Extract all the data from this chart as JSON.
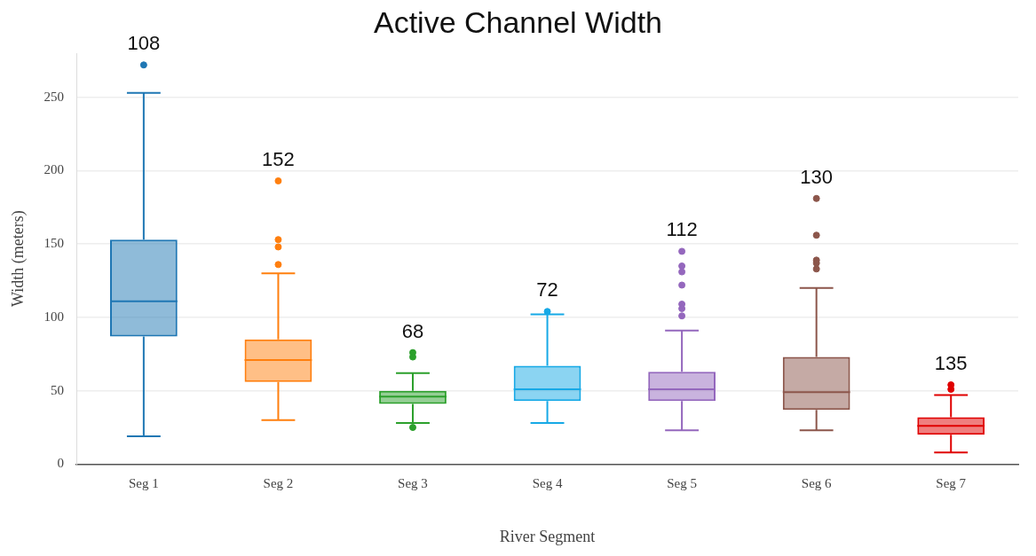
{
  "chart_data": {
    "type": "box",
    "title": "Active Channel Width",
    "xlabel": "River Segment",
    "ylabel": "Width (meters)",
    "categories": [
      "Seg 1",
      "Seg 2",
      "Seg 3",
      "Seg 4",
      "Seg 5",
      "Seg 6",
      "Seg 7"
    ],
    "colors": [
      "#1f77b4",
      "#ff7f0e",
      "#2ca02c",
      "#17a9e6",
      "#9467bd",
      "#8c564b",
      "#e00000"
    ],
    "boxes": [
      {
        "low": 19,
        "q1": 87,
        "median": 111,
        "q3": 153,
        "high": 253,
        "outliers": [
          272
        ]
      },
      {
        "low": 30,
        "q1": 56,
        "median": 71,
        "q3": 85,
        "high": 130,
        "outliers": [
          193,
          153,
          148,
          136
        ]
      },
      {
        "low": 28,
        "q1": 41,
        "median": 46,
        "q3": 50,
        "high": 62,
        "outliers": [
          76,
          73,
          25
        ]
      },
      {
        "low": 28,
        "q1": 43,
        "median": 51,
        "q3": 67,
        "high": 102,
        "outliers": [
          104
        ]
      },
      {
        "low": 23,
        "q1": 43,
        "median": 51,
        "q3": 63,
        "high": 91,
        "outliers": [
          145,
          135,
          131,
          122,
          109,
          106,
          101
        ]
      },
      {
        "low": 23,
        "q1": 37,
        "median": 49,
        "q3": 73,
        "high": 120,
        "outliers": [
          181,
          156,
          139,
          137,
          133
        ]
      },
      {
        "low": 8,
        "q1": 20,
        "median": 26,
        "q3": 32,
        "high": 47,
        "outliers": [
          54,
          51
        ]
      }
    ],
    "annotations": [
      "108",
      "152",
      "68",
      "72",
      "112",
      "130",
      "135"
    ],
    "ylim": [
      0,
      280
    ],
    "yticks": [
      0,
      50,
      100,
      150,
      200,
      250
    ],
    "grid": "y",
    "legend": false,
    "marker": "circle"
  }
}
